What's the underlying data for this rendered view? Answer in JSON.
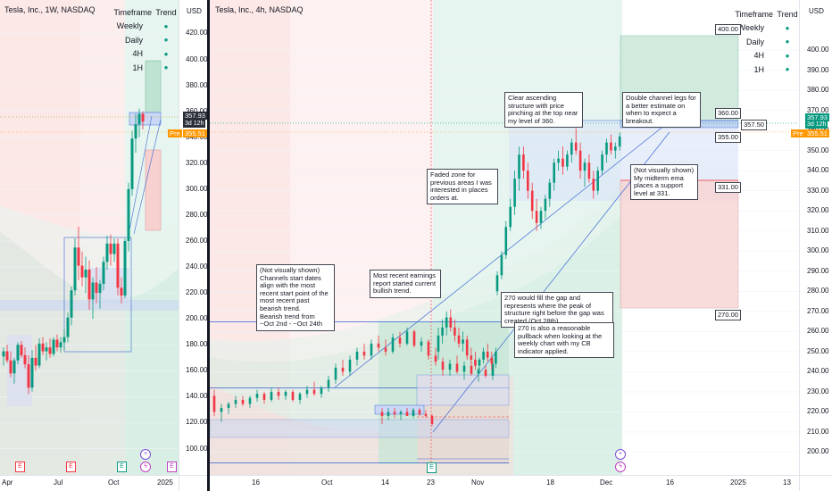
{
  "chart_data": [
    {
      "type": "candlestick",
      "symbol": "Tesla, Inc., 1W, NASDAQ",
      "currency": "USD",
      "x_tick_labels": [
        "Apr",
        "Jul",
        "Oct",
        "2025"
      ],
      "y_tick_labels": [
        "420.00",
        "400.00",
        "380.00",
        "360.00",
        "340.00",
        "320.00",
        "300.00",
        "280.00",
        "260.00",
        "240.00",
        "220.00",
        "200.00",
        "180.00",
        "160.00",
        "140.00",
        "120.00",
        "100.00"
      ],
      "ylim": [
        88,
        432
      ],
      "last_price": "357.93",
      "countdown": "3d 12h",
      "pre_label": "Pre",
      "pre_price": "355.51",
      "trend_table": {
        "header": [
          "Timeframe",
          "Trend"
        ],
        "rows": [
          "Weekly",
          "Daily",
          "4H",
          "1H"
        ]
      },
      "event_markers": [
        "E",
        "E",
        "E",
        "E"
      ],
      "candles": [
        {
          "o": 171,
          "h": 178,
          "l": 164,
          "c": 175
        },
        {
          "o": 175,
          "h": 180,
          "l": 166,
          "c": 168
        },
        {
          "o": 168,
          "h": 175,
          "l": 155,
          "c": 158
        },
        {
          "o": 158,
          "h": 170,
          "l": 150,
          "c": 168
        },
        {
          "o": 168,
          "h": 182,
          "l": 165,
          "c": 180
        },
        {
          "o": 180,
          "h": 183,
          "l": 170,
          "c": 172
        },
        {
          "o": 172,
          "h": 178,
          "l": 162,
          "c": 165
        },
        {
          "o": 165,
          "h": 172,
          "l": 142,
          "c": 147
        },
        {
          "o": 147,
          "h": 176,
          "l": 144,
          "c": 170
        },
        {
          "o": 170,
          "h": 180,
          "l": 160,
          "c": 164
        },
        {
          "o": 164,
          "h": 185,
          "l": 162,
          "c": 181
        },
        {
          "o": 181,
          "h": 186,
          "l": 172,
          "c": 175
        },
        {
          "o": 175,
          "h": 182,
          "l": 168,
          "c": 178
        },
        {
          "o": 178,
          "h": 185,
          "l": 170,
          "c": 173
        },
        {
          "o": 173,
          "h": 186,
          "l": 171,
          "c": 184
        },
        {
          "o": 184,
          "h": 188,
          "l": 175,
          "c": 178
        },
        {
          "o": 178,
          "h": 186,
          "l": 174,
          "c": 182
        },
        {
          "o": 182,
          "h": 192,
          "l": 176,
          "c": 186
        },
        {
          "o": 186,
          "h": 205,
          "l": 182,
          "c": 201
        },
        {
          "o": 201,
          "h": 225,
          "l": 195,
          "c": 222
        },
        {
          "o": 222,
          "h": 262,
          "l": 218,
          "c": 255
        },
        {
          "o": 255,
          "h": 271,
          "l": 230,
          "c": 241
        },
        {
          "o": 241,
          "h": 252,
          "l": 225,
          "c": 232
        },
        {
          "o": 232,
          "h": 248,
          "l": 220,
          "c": 238
        },
        {
          "o": 238,
          "h": 245,
          "l": 207,
          "c": 215
        },
        {
          "o": 215,
          "h": 232,
          "l": 200,
          "c": 228
        },
        {
          "o": 228,
          "h": 240,
          "l": 212,
          "c": 220
        },
        {
          "o": 220,
          "h": 230,
          "l": 208,
          "c": 227
        },
        {
          "o": 227,
          "h": 248,
          "l": 222,
          "c": 244
        },
        {
          "o": 244,
          "h": 264,
          "l": 238,
          "c": 258
        },
        {
          "o": 258,
          "h": 265,
          "l": 241,
          "c": 250
        },
        {
          "o": 250,
          "h": 262,
          "l": 244,
          "c": 258
        },
        {
          "o": 258,
          "h": 262,
          "l": 218,
          "c": 224
        },
        {
          "o": 224,
          "h": 232,
          "l": 212,
          "c": 218
        },
        {
          "o": 218,
          "h": 262,
          "l": 216,
          "c": 260
        },
        {
          "o": 260,
          "h": 305,
          "l": 252,
          "c": 300
        },
        {
          "o": 300,
          "h": 345,
          "l": 295,
          "c": 339
        },
        {
          "o": 339,
          "h": 358,
          "l": 328,
          "c": 350
        },
        {
          "o": 350,
          "h": 362,
          "l": 340,
          "c": 358
        },
        {
          "o": 358,
          "h": 360,
          "l": 346,
          "c": 352
        }
      ]
    },
    {
      "type": "candlestick",
      "symbol": "Tesla, Inc., 4h, NASDAQ",
      "currency": "USD",
      "x_tick_labels": [
        "16",
        "Oct",
        "14",
        "23",
        "Nov",
        "18",
        "Dec",
        "16",
        "2025",
        "13"
      ],
      "y_tick_labels": [
        "400.00",
        "390.00",
        "380.00",
        "370.00",
        "360.00",
        "350.00",
        "340.00",
        "330.00",
        "320.00",
        "310.00",
        "300.00",
        "290.00",
        "280.00",
        "270.00",
        "260.00",
        "250.00",
        "240.00",
        "230.00",
        "220.00",
        "210.00",
        "200.00"
      ],
      "ylim": [
        194,
        416
      ],
      "last_price": "357.93",
      "countdown": "3d 12h",
      "pre_label": "Pre",
      "pre_price": "355.51",
      "trend_table": {
        "header": [
          "Timeframe",
          "Trend"
        ],
        "rows": [
          "Weekly",
          "Daily",
          "4H",
          "1H"
        ]
      },
      "price_boxes": [
        "400.00",
        "360.00",
        "357.50",
        "355.00",
        "331.00",
        "270.00"
      ],
      "event_markers": [
        "E"
      ],
      "annotations": [
        "(Not visually shown)\nChannels start dates align with the most recent start point of the most recent past bearish trend.\nBearish trend from\n~Oct 2nd - ~Oct 24th",
        "Most recent earnings report started current bullish trend.",
        "Faded zone for previous areas I was interested in places orders at.",
        "Clear ascending structure with price pinching at the top near my level of 360.",
        "Double channel legs for a better estimate on when to expect a breakout.",
        "(Not visually shown)\nMy midterm ema places a support level at 331.",
        "270 would fill the gap and represents where the peak of structure right before the gap was created (Oct 28th).",
        "270 is also a reasonable pullback when looking at the weekly chart with my CB indicator applied."
      ],
      "candles": [
        {
          "o": 228,
          "h": 231,
          "l": 218,
          "c": 220
        },
        {
          "o": 220,
          "h": 224,
          "l": 215,
          "c": 222
        },
        {
          "o": 222,
          "h": 225,
          "l": 219,
          "c": 224
        },
        {
          "o": 224,
          "h": 228,
          "l": 222,
          "c": 226
        },
        {
          "o": 226,
          "h": 228,
          "l": 223,
          "c": 224
        },
        {
          "o": 224,
          "h": 228,
          "l": 222,
          "c": 227
        },
        {
          "o": 227,
          "h": 231,
          "l": 225,
          "c": 229
        },
        {
          "o": 229,
          "h": 230,
          "l": 224,
          "c": 226
        },
        {
          "o": 226,
          "h": 232,
          "l": 225,
          "c": 230
        },
        {
          "o": 230,
          "h": 232,
          "l": 226,
          "c": 228
        },
        {
          "o": 228,
          "h": 231,
          "l": 226,
          "c": 230
        },
        {
          "o": 230,
          "h": 231,
          "l": 225,
          "c": 226
        },
        {
          "o": 226,
          "h": 230,
          "l": 224,
          "c": 229
        },
        {
          "o": 229,
          "h": 233,
          "l": 227,
          "c": 231
        },
        {
          "o": 231,
          "h": 235,
          "l": 228,
          "c": 229
        },
        {
          "o": 229,
          "h": 233,
          "l": 227,
          "c": 232
        },
        {
          "o": 232,
          "h": 238,
          "l": 230,
          "c": 236
        },
        {
          "o": 236,
          "h": 244,
          "l": 234,
          "c": 242
        },
        {
          "o": 242,
          "h": 246,
          "l": 238,
          "c": 240
        },
        {
          "o": 240,
          "h": 248,
          "l": 238,
          "c": 246
        },
        {
          "o": 246,
          "h": 252,
          "l": 243,
          "c": 250
        },
        {
          "o": 250,
          "h": 254,
          "l": 246,
          "c": 248
        },
        {
          "o": 248,
          "h": 256,
          "l": 246,
          "c": 254
        },
        {
          "o": 254,
          "h": 258,
          "l": 250,
          "c": 252
        },
        {
          "o": 252,
          "h": 256,
          "l": 248,
          "c": 250
        },
        {
          "o": 250,
          "h": 259,
          "l": 249,
          "c": 257
        },
        {
          "o": 257,
          "h": 260,
          "l": 252,
          "c": 254
        },
        {
          "o": 254,
          "h": 262,
          "l": 253,
          "c": 260
        },
        {
          "o": 260,
          "h": 261,
          "l": 252,
          "c": 253
        },
        {
          "o": 253,
          "h": 257,
          "l": 250,
          "c": 255
        },
        {
          "o": 255,
          "h": 256,
          "l": 246,
          "c": 248
        },
        {
          "o": 248,
          "h": 252,
          "l": 243,
          "c": 245
        },
        {
          "o": 245,
          "h": 247,
          "l": 238,
          "c": 241
        },
        {
          "o": 241,
          "h": 246,
          "l": 238,
          "c": 244
        },
        {
          "o": 244,
          "h": 248,
          "l": 239,
          "c": 240
        },
        {
          "o": 240,
          "h": 245,
          "l": 236,
          "c": 243
        },
        {
          "o": 243,
          "h": 245,
          "l": 238,
          "c": 239
        },
        {
          "o": 239,
          "h": 242,
          "l": 235,
          "c": 241
        },
        {
          "o": 241,
          "h": 243,
          "l": 237,
          "c": 238
        },
        {
          "o": 238,
          "h": 247,
          "l": 236,
          "c": 244
        },
        {
          "o": 220,
          "h": 222,
          "l": 214,
          "c": 218
        },
        {
          "o": 218,
          "h": 222,
          "l": 216,
          "c": 220
        },
        {
          "o": 220,
          "h": 222,
          "l": 217,
          "c": 219
        },
        {
          "o": 219,
          "h": 221,
          "l": 216,
          "c": 220
        },
        {
          "o": 220,
          "h": 222,
          "l": 218,
          "c": 218
        },
        {
          "o": 218,
          "h": 222,
          "l": 217,
          "c": 221
        },
        {
          "o": 221,
          "h": 222,
          "l": 218,
          "c": 219
        },
        {
          "o": 219,
          "h": 221,
          "l": 217,
          "c": 218
        },
        {
          "o": 218,
          "h": 219,
          "l": 213,
          "c": 214
        },
        {
          "o": 250,
          "h": 262,
          "l": 246,
          "c": 258
        },
        {
          "o": 258,
          "h": 266,
          "l": 254,
          "c": 262
        },
        {
          "o": 262,
          "h": 270,
          "l": 258,
          "c": 267
        },
        {
          "o": 267,
          "h": 271,
          "l": 260,
          "c": 262
        },
        {
          "o": 262,
          "h": 266,
          "l": 255,
          "c": 258
        },
        {
          "o": 258,
          "h": 262,
          "l": 252,
          "c": 254
        },
        {
          "o": 254,
          "h": 260,
          "l": 250,
          "c": 256
        },
        {
          "o": 256,
          "h": 258,
          "l": 246,
          "c": 248
        },
        {
          "o": 248,
          "h": 252,
          "l": 244,
          "c": 246
        },
        {
          "o": 246,
          "h": 250,
          "l": 241,
          "c": 243
        },
        {
          "o": 243,
          "h": 247,
          "l": 240,
          "c": 246
        },
        {
          "o": 246,
          "h": 252,
          "l": 244,
          "c": 250
        },
        {
          "o": 250,
          "h": 254,
          "l": 245,
          "c": 247
        },
        {
          "o": 247,
          "h": 250,
          "l": 241,
          "c": 244
        },
        {
          "o": 244,
          "h": 252,
          "l": 242,
          "c": 250
        },
        {
          "o": 280,
          "h": 290,
          "l": 278,
          "c": 288
        },
        {
          "o": 288,
          "h": 300,
          "l": 286,
          "c": 298
        },
        {
          "o": 298,
          "h": 315,
          "l": 296,
          "c": 312
        },
        {
          "o": 312,
          "h": 326,
          "l": 310,
          "c": 322
        },
        {
          "o": 322,
          "h": 340,
          "l": 318,
          "c": 336
        },
        {
          "o": 336,
          "h": 352,
          "l": 330,
          "c": 348
        },
        {
          "o": 348,
          "h": 352,
          "l": 336,
          "c": 340
        },
        {
          "o": 340,
          "h": 344,
          "l": 326,
          "c": 330
        },
        {
          "o": 330,
          "h": 334,
          "l": 316,
          "c": 320
        },
        {
          "o": 320,
          "h": 326,
          "l": 310,
          "c": 314
        },
        {
          "o": 314,
          "h": 322,
          "l": 311,
          "c": 320
        },
        {
          "o": 320,
          "h": 328,
          "l": 316,
          "c": 326
        },
        {
          "o": 326,
          "h": 336,
          "l": 322,
          "c": 334
        },
        {
          "o": 334,
          "h": 346,
          "l": 330,
          "c": 344
        },
        {
          "o": 344,
          "h": 350,
          "l": 340,
          "c": 346
        },
        {
          "o": 346,
          "h": 352,
          "l": 338,
          "c": 342
        },
        {
          "o": 342,
          "h": 350,
          "l": 340,
          "c": 348
        },
        {
          "o": 348,
          "h": 356,
          "l": 344,
          "c": 354
        },
        {
          "o": 354,
          "h": 361,
          "l": 348,
          "c": 350
        },
        {
          "o": 350,
          "h": 354,
          "l": 336,
          "c": 340
        },
        {
          "o": 340,
          "h": 346,
          "l": 332,
          "c": 344
        },
        {
          "o": 344,
          "h": 348,
          "l": 334,
          "c": 336
        },
        {
          "o": 336,
          "h": 340,
          "l": 326,
          "c": 330
        },
        {
          "o": 330,
          "h": 342,
          "l": 328,
          "c": 340
        },
        {
          "o": 340,
          "h": 350,
          "l": 338,
          "c": 348
        },
        {
          "o": 348,
          "h": 356,
          "l": 344,
          "c": 354
        },
        {
          "o": 354,
          "h": 358,
          "l": 348,
          "c": 350
        },
        {
          "o": 350,
          "h": 354,
          "l": 346,
          "c": 352
        },
        {
          "o": 352,
          "h": 359,
          "l": 350,
          "c": 357
        }
      ]
    }
  ]
}
